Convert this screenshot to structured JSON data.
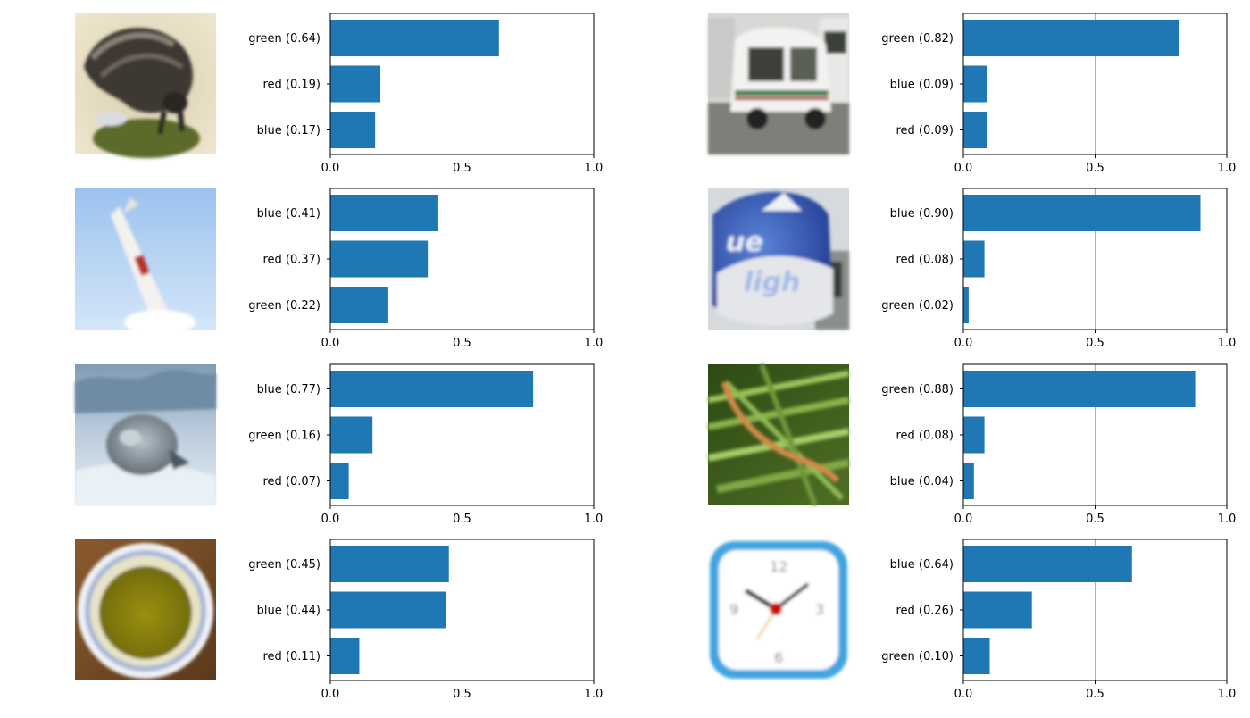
{
  "figure": {
    "bar_color": "#1f77b4",
    "grid_color": "#b0b0b0",
    "axis_color": "#000000"
  },
  "chart_data": [
    {
      "type": "bar",
      "orientation": "horizontal",
      "image_icon": "porcupine-photo",
      "categories": [
        "green (0.64)",
        "red (0.19)",
        "blue (0.17)"
      ],
      "values": [
        0.64,
        0.19,
        0.17
      ],
      "xlim": [
        0,
        1
      ],
      "xticks": [
        "0.0",
        "0.5",
        "1.0"
      ],
      "grid": "vertical at 0.5"
    },
    {
      "type": "bar",
      "orientation": "horizontal",
      "image_icon": "vehicle-photo",
      "categories": [
        "green (0.82)",
        "blue (0.09)",
        "red (0.09)"
      ],
      "values": [
        0.82,
        0.09,
        0.09
      ],
      "xlim": [
        0,
        1
      ],
      "xticks": [
        "0.0",
        "0.5",
        "1.0"
      ],
      "grid": "vertical at 0.5"
    },
    {
      "type": "bar",
      "orientation": "horizontal",
      "image_icon": "rocket-photo",
      "categories": [
        "blue (0.41)",
        "red (0.37)",
        "green (0.22)"
      ],
      "values": [
        0.41,
        0.37,
        0.22
      ],
      "xlim": [
        0,
        1
      ],
      "xticks": [
        "0.0",
        "0.5",
        "1.0"
      ],
      "grid": "vertical at 0.5"
    },
    {
      "type": "bar",
      "orientation": "horizontal",
      "image_icon": "inflatable-can-photo",
      "categories": [
        "blue (0.90)",
        "red (0.08)",
        "green (0.02)"
      ],
      "values": [
        0.9,
        0.08,
        0.02
      ],
      "xlim": [
        0,
        1
      ],
      "xticks": [
        "0.0",
        "0.5",
        "1.0"
      ],
      "grid": "vertical at 0.5"
    },
    {
      "type": "bar",
      "orientation": "horizontal",
      "image_icon": "seal-photo",
      "categories": [
        "blue (0.77)",
        "green (0.16)",
        "red (0.07)"
      ],
      "values": [
        0.77,
        0.16,
        0.07
      ],
      "xlim": [
        0,
        1
      ],
      "xticks": [
        "0.0",
        "0.5",
        "1.0"
      ],
      "grid": "vertical at 0.5"
    },
    {
      "type": "bar",
      "orientation": "horizontal",
      "image_icon": "caterpillar-photo",
      "categories": [
        "green (0.88)",
        "red (0.08)",
        "blue (0.04)"
      ],
      "values": [
        0.88,
        0.08,
        0.04
      ],
      "xlim": [
        0,
        1
      ],
      "xticks": [
        "0.0",
        "0.5",
        "1.0"
      ],
      "grid": "vertical at 0.5"
    },
    {
      "type": "bar",
      "orientation": "horizontal",
      "image_icon": "bowl-photo",
      "categories": [
        "green (0.45)",
        "blue (0.44)",
        "red (0.11)"
      ],
      "values": [
        0.45,
        0.44,
        0.11
      ],
      "xlim": [
        0,
        1
      ],
      "xticks": [
        "0.0",
        "0.5",
        "1.0"
      ],
      "grid": "vertical at 0.5"
    },
    {
      "type": "bar",
      "orientation": "horizontal",
      "image_icon": "clock-photo",
      "categories": [
        "blue (0.64)",
        "red (0.26)",
        "green (0.10)"
      ],
      "values": [
        0.64,
        0.26,
        0.1
      ],
      "xlim": [
        0,
        1
      ],
      "xticks": [
        "0.0",
        "0.5",
        "1.0"
      ],
      "grid": "vertical at 0.5"
    }
  ]
}
